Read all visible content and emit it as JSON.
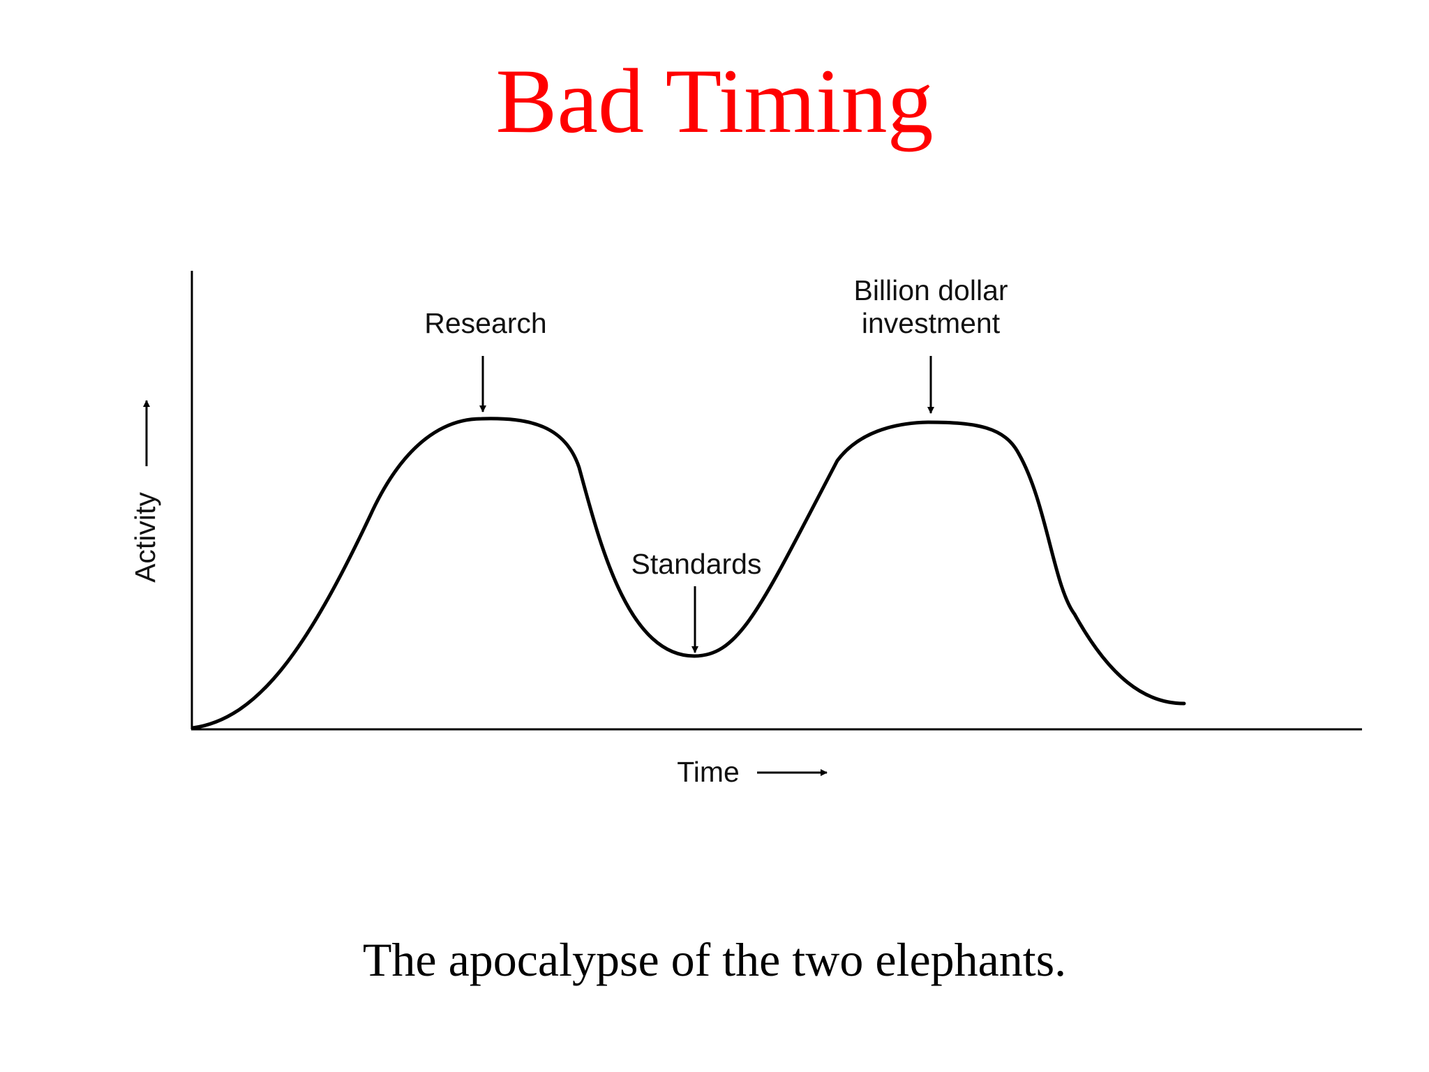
{
  "slide": {
    "title": "Bad Timing",
    "caption": "The apocalypse of the two elephants."
  },
  "diagram": {
    "y_axis_label": "Activity",
    "x_axis_label": "Time",
    "annotations": {
      "research": "Research",
      "standards": "Standards",
      "billion_line1": "Billion dollar",
      "billion_line2": "investment"
    }
  },
  "colors": {
    "title": "#ff0000",
    "ink": "#000000"
  }
}
